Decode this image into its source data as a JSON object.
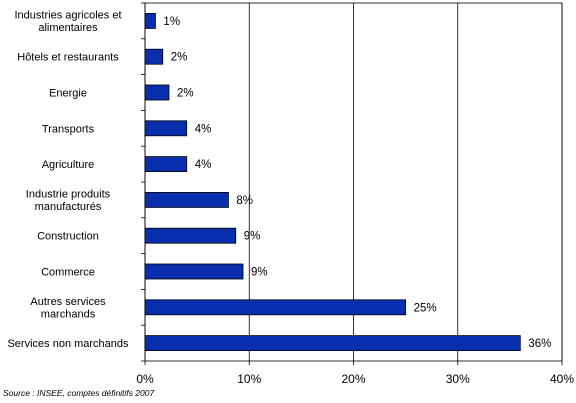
{
  "chart_data": {
    "type": "bar",
    "orientation": "horizontal",
    "categories": [
      "Industries agricoles et alimentaires",
      "Hôtels et restaurants",
      "Energie",
      "Transports",
      "Agriculture",
      "Industrie produits manufacturés",
      "Construction",
      "Commerce",
      "Autres services marchands",
      "Services non marchands"
    ],
    "category_lines": [
      [
        "Industries agricoles et",
        "alimentaires"
      ],
      [
        "Hôtels et restaurants"
      ],
      [
        "Energie"
      ],
      [
        "Transports"
      ],
      [
        "Agriculture"
      ],
      [
        "Industrie produits",
        "manufacturés"
      ],
      [
        "Construction"
      ],
      [
        "Commerce"
      ],
      [
        "Autres services",
        "marchands"
      ],
      [
        "Services non marchands"
      ]
    ],
    "values": [
      1,
      1.7,
      2.3,
      4,
      4,
      8,
      8.7,
      9.4,
      25,
      36
    ],
    "value_labels": [
      "1%",
      "2%",
      "2%",
      "4%",
      "4%",
      "8%",
      "9%",
      "9%",
      "25%",
      "36%"
    ],
    "xlim": [
      0,
      40
    ],
    "ticks": [
      0,
      10,
      20,
      30,
      40
    ],
    "tick_labels": [
      "0%",
      "10%",
      "20%",
      "30%",
      "40%"
    ],
    "grid": "vertical",
    "legend": "none",
    "colors": {
      "bar": "#0a2fae",
      "bar_edge": "#000000",
      "grid": "#000000"
    },
    "title": "",
    "xlabel": "",
    "ylabel": ""
  },
  "source": "Source : INSEE, comptes définitifs 2007"
}
